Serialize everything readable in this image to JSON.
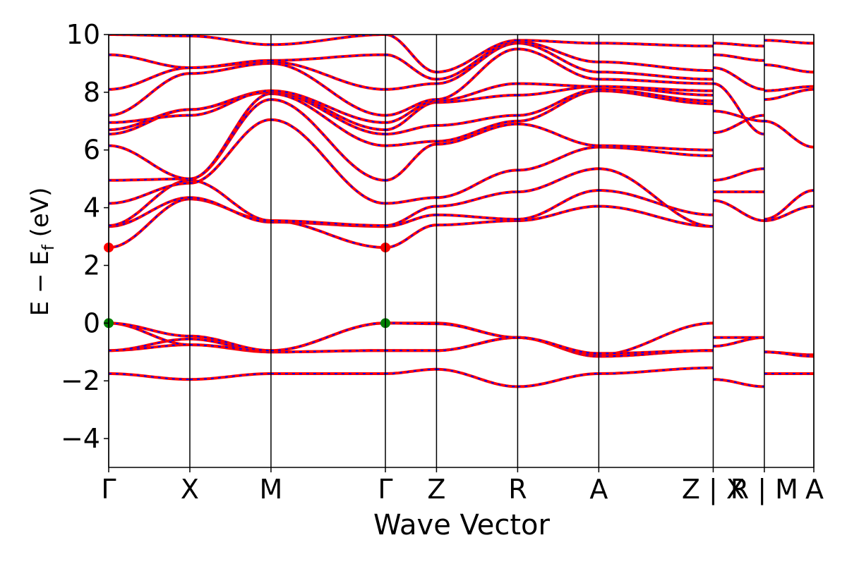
{
  "chart_data": {
    "type": "line",
    "title": "",
    "xlabel": "Wave Vector",
    "ylabel": "E − E",
    "ylabel_sub": "f",
    "ylabel_unit": " (eV)",
    "ylim": [
      -5,
      10
    ],
    "yticks": [
      -4,
      -2,
      0,
      2,
      4,
      6,
      8,
      10
    ],
    "ytick_labels": [
      "−4",
      "−2",
      "0",
      "2",
      "4",
      "6",
      "8",
      "10"
    ],
    "xlim": [
      0,
      8.69
    ],
    "kpoints": [
      {
        "x": 0.0,
        "label": "Γ"
      },
      {
        "x": 1.0,
        "label": "X"
      },
      {
        "x": 2.0,
        "label": "M"
      },
      {
        "x": 3.41,
        "label": "Γ"
      },
      {
        "x": 4.04,
        "label": "Z"
      },
      {
        "x": 5.04,
        "label": "R"
      },
      {
        "x": 6.04,
        "label": "A"
      },
      {
        "x": 7.45,
        "label": "Z | X"
      },
      {
        "x": 8.08,
        "label": "R | M"
      },
      {
        "x": 8.69,
        "label": "A"
      }
    ],
    "grid": false,
    "legend": "none",
    "colors": {
      "band_solid": "#ff0000",
      "band_dashed": "#0000ff",
      "cbm": "#ff0000",
      "vbm": "#008000",
      "axis": "#000000"
    },
    "markers": [
      {
        "name": "CBM",
        "color": "#ff0000",
        "points": [
          {
            "x": 0.0,
            "y": 2.62
          },
          {
            "x": 3.41,
            "y": 2.62
          }
        ]
      },
      {
        "name": "VBM",
        "color": "#008000",
        "points": [
          {
            "x": 0.0,
            "y": 0.0
          },
          {
            "x": 3.41,
            "y": 0.0
          }
        ]
      }
    ],
    "segments": [
      {
        "x0": 0.0,
        "x1": 1.0,
        "bands": [
          [
            -1.75,
            -1.95
          ],
          [
            -0.95,
            -0.75
          ],
          [
            -0.95,
            -0.55
          ],
          [
            0.0,
            -0.75
          ],
          [
            0.0,
            -0.45
          ],
          [
            2.62,
            4.3
          ],
          [
            3.35,
            4.35
          ],
          [
            3.38,
            4.95
          ],
          [
            4.15,
            4.85
          ],
          [
            4.95,
            5.0
          ],
          [
            6.15,
            5.0
          ],
          [
            6.55,
            7.4
          ],
          [
            6.7,
            7.4
          ],
          [
            6.95,
            7.2
          ],
          [
            7.2,
            8.65
          ],
          [
            8.1,
            8.85
          ],
          [
            9.3,
            8.85
          ],
          [
            10.0,
            9.95
          ]
        ]
      },
      {
        "x0": 1.0,
        "x1": 2.0,
        "bands": [
          [
            -1.95,
            -1.75
          ],
          [
            -0.75,
            -1.0
          ],
          [
            -0.55,
            -1.0
          ],
          [
            -0.75,
            -0.95
          ],
          [
            -0.45,
            -0.95
          ],
          [
            4.3,
            3.55
          ],
          [
            4.35,
            3.5
          ],
          [
            4.95,
            3.55
          ],
          [
            4.85,
            7.05
          ],
          [
            5.0,
            7.75
          ],
          [
            5.0,
            7.95
          ],
          [
            7.4,
            8.0
          ],
          [
            7.4,
            8.05
          ],
          [
            7.2,
            8.05
          ],
          [
            8.65,
            9.0
          ],
          [
            8.85,
            9.05
          ],
          [
            8.85,
            9.1
          ],
          [
            9.95,
            9.65
          ]
        ]
      },
      {
        "x0": 2.0,
        "x1": 3.41,
        "bands": [
          [
            -1.75,
            -1.75
          ],
          [
            -1.0,
            -0.95
          ],
          [
            -1.0,
            -0.95
          ],
          [
            -0.95,
            0.0
          ],
          [
            -0.95,
            0.0
          ],
          [
            3.55,
            2.62
          ],
          [
            3.5,
            3.35
          ],
          [
            3.55,
            3.38
          ],
          [
            7.05,
            4.15
          ],
          [
            7.75,
            4.95
          ],
          [
            7.95,
            6.15
          ],
          [
            8.0,
            6.55
          ],
          [
            8.05,
            6.7
          ],
          [
            8.05,
            6.95
          ],
          [
            9.0,
            7.2
          ],
          [
            9.05,
            8.1
          ],
          [
            9.1,
            9.3
          ],
          [
            9.65,
            10.0
          ]
        ]
      },
      {
        "x0": 3.41,
        "x1": 4.04,
        "bands": [
          [
            -1.75,
            -1.6
          ],
          [
            -0.95,
            -0.95
          ],
          [
            -0.95,
            -0.95
          ],
          [
            0.0,
            0.0
          ],
          [
            0.0,
            -0.02
          ],
          [
            2.62,
            3.4
          ],
          [
            3.35,
            3.75
          ],
          [
            3.38,
            4.05
          ],
          [
            4.15,
            4.35
          ],
          [
            4.95,
            6.2
          ],
          [
            6.15,
            6.3
          ],
          [
            6.55,
            6.85
          ],
          [
            6.7,
            7.65
          ],
          [
            6.95,
            7.7
          ],
          [
            7.2,
            7.75
          ],
          [
            8.1,
            8.3
          ],
          [
            9.3,
            8.45
          ],
          [
            10.0,
            8.7
          ]
        ]
      },
      {
        "x0": 4.04,
        "x1": 5.04,
        "bands": [
          [
            -1.6,
            -2.2
          ],
          [
            -0.95,
            -0.5
          ],
          [
            -0.95,
            -0.5
          ],
          [
            0.0,
            -0.5
          ],
          [
            -0.02,
            -0.5
          ],
          [
            3.4,
            3.55
          ],
          [
            3.75,
            3.6
          ],
          [
            4.05,
            4.55
          ],
          [
            4.35,
            5.3
          ],
          [
            6.2,
            6.9
          ],
          [
            6.3,
            7.0
          ],
          [
            6.85,
            7.2
          ],
          [
            7.65,
            7.9
          ],
          [
            7.7,
            8.3
          ],
          [
            7.75,
            9.5
          ],
          [
            8.3,
            9.7
          ],
          [
            8.45,
            9.75
          ],
          [
            8.7,
            9.8
          ]
        ]
      },
      {
        "x0": 5.04,
        "x1": 6.04,
        "bands": [
          [
            -2.2,
            -1.75
          ],
          [
            -0.5,
            -1.15
          ],
          [
            -0.5,
            -1.15
          ],
          [
            -0.5,
            -1.1
          ],
          [
            -0.5,
            -1.05
          ],
          [
            3.55,
            4.05
          ],
          [
            3.6,
            4.6
          ],
          [
            4.55,
            5.35
          ],
          [
            5.3,
            6.1
          ],
          [
            6.9,
            6.15
          ],
          [
            7.0,
            8.05
          ],
          [
            7.2,
            8.1
          ],
          [
            7.9,
            8.2
          ],
          [
            8.3,
            8.2
          ],
          [
            9.5,
            8.45
          ],
          [
            9.7,
            8.7
          ],
          [
            9.75,
            9.05
          ],
          [
            9.8,
            9.7
          ]
        ]
      },
      {
        "x0": 6.04,
        "x1": 7.45,
        "bands": [
          [
            -1.75,
            -1.55
          ],
          [
            -1.15,
            -0.95
          ],
          [
            -1.15,
            -0.95
          ],
          [
            -1.1,
            0.0
          ],
          [
            -1.05,
            -0.95
          ],
          [
            4.05,
            3.35
          ],
          [
            4.6,
            3.75
          ],
          [
            5.35,
            3.35
          ],
          [
            6.1,
            5.8
          ],
          [
            6.15,
            6.0
          ],
          [
            8.05,
            7.6
          ],
          [
            8.1,
            7.7
          ],
          [
            8.2,
            7.9
          ],
          [
            8.2,
            8.05
          ],
          [
            8.45,
            8.3
          ],
          [
            8.7,
            8.45
          ],
          [
            9.05,
            8.75
          ],
          [
            9.7,
            9.6
          ]
        ]
      },
      {
        "x0": 7.45,
        "x1": 8.08,
        "bands": [
          [
            -1.95,
            -2.2
          ],
          [
            -0.8,
            -0.5
          ],
          [
            -0.5,
            -0.5
          ],
          [
            4.25,
            3.55
          ],
          [
            4.55,
            4.55
          ],
          [
            4.95,
            5.35
          ],
          [
            6.6,
            7.2
          ],
          [
            7.35,
            7.0
          ],
          [
            8.3,
            6.55
          ],
          [
            8.85,
            8.1
          ],
          [
            9.7,
            9.6
          ],
          [
            9.3,
            9.1
          ]
        ]
      },
      {
        "x0": 8.08,
        "x1": 8.69,
        "bands": [
          [
            -1.75,
            -1.75
          ],
          [
            -1.0,
            -1.1
          ],
          [
            -1.0,
            -1.15
          ],
          [
            3.55,
            4.05
          ],
          [
            3.6,
            4.6
          ],
          [
            7.0,
            6.1
          ],
          [
            7.75,
            8.1
          ],
          [
            8.05,
            8.2
          ],
          [
            8.95,
            8.7
          ],
          [
            9.8,
            9.7
          ]
        ]
      }
    ]
  }
}
